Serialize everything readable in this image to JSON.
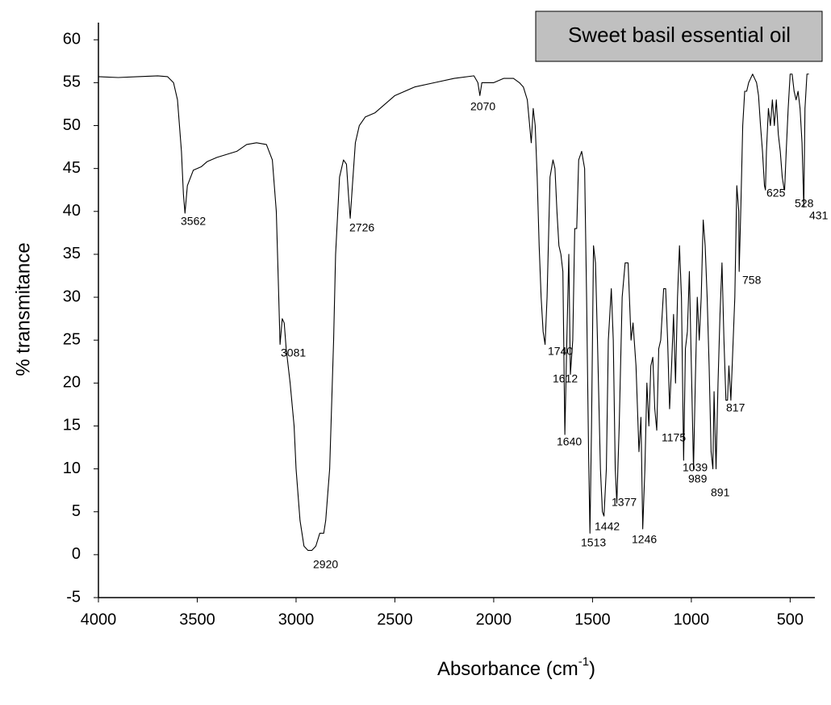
{
  "chart_data": {
    "type": "line",
    "title": "Sweet basil essential oil",
    "x_label": {
      "text": "Absorbance (cm",
      "sup": "-1",
      "tail": ")"
    },
    "y_label": "% transmitance",
    "xlim": [
      4000,
      375
    ],
    "xticks": [
      4000,
      3500,
      3000,
      2500,
      2000,
      1500,
      1000,
      500
    ],
    "ylim": [
      -5,
      62
    ],
    "yticks": [
      -5,
      0,
      5,
      10,
      15,
      20,
      25,
      30,
      35,
      40,
      45,
      50,
      55,
      60
    ],
    "grid": false,
    "series": [
      {
        "name": "Sweet basil essential oil",
        "color": "#000000",
        "x": [
          4000,
          3900,
          3800,
          3700,
          3650,
          3620,
          3600,
          3580,
          3570,
          3562,
          3550,
          3520,
          3480,
          3450,
          3400,
          3300,
          3250,
          3200,
          3150,
          3120,
          3100,
          3090,
          3081,
          3070,
          3060,
          3050,
          3030,
          3010,
          3000,
          2980,
          2960,
          2940,
          2920,
          2900,
          2880,
          2860,
          2850,
          2830,
          2810,
          2800,
          2780,
          2760,
          2745,
          2735,
          2726,
          2715,
          2700,
          2680,
          2650,
          2600,
          2550,
          2500,
          2400,
          2300,
          2200,
          2100,
          2080,
          2070,
          2060,
          2000,
          1950,
          1900,
          1870,
          1850,
          1830,
          1810,
          1800,
          1790,
          1780,
          1770,
          1760,
          1750,
          1740,
          1730,
          1715,
          1700,
          1690,
          1680,
          1670,
          1660,
          1650,
          1640,
          1630,
          1620,
          1612,
          1600,
          1590,
          1580,
          1570,
          1555,
          1540,
          1530,
          1520,
          1513,
          1505,
          1495,
          1485,
          1475,
          1460,
          1450,
          1442,
          1430,
          1420,
          1405,
          1395,
          1385,
          1377,
          1365,
          1350,
          1335,
          1320,
          1305,
          1295,
          1280,
          1265,
          1255,
          1246,
          1235,
          1225,
          1215,
          1205,
          1195,
          1185,
          1175,
          1165,
          1155,
          1140,
          1130,
          1120,
          1110,
          1100,
          1090,
          1080,
          1070,
          1060,
          1050,
          1039,
          1030,
          1020,
          1010,
          1000,
          989,
          980,
          970,
          960,
          950,
          940,
          930,
          920,
          910,
          900,
          891,
          885,
          875,
          865,
          855,
          845,
          835,
          825,
          817,
          810,
          800,
          790,
          780,
          770,
          760,
          758,
          750,
          740,
          730,
          720,
          710,
          700,
          690,
          680,
          670,
          660,
          650,
          640,
          630,
          625,
          620,
          610,
          600,
          590,
          580,
          570,
          560,
          550,
          540,
          530,
          528,
          520,
          510,
          500,
          490,
          480,
          470,
          460,
          450,
          440,
          431,
          425,
          415,
          405
        ],
        "values": [
          55.7,
          55.6,
          55.7,
          55.8,
          55.7,
          55,
          53,
          47,
          42,
          39.8,
          43,
          44.8,
          45.2,
          45.8,
          46.3,
          47,
          47.8,
          48,
          47.8,
          46,
          40,
          32,
          24.5,
          27.5,
          27,
          24,
          20,
          15,
          10,
          4,
          1,
          0.5,
          0.5,
          1,
          2.5,
          2.5,
          4,
          10,
          25,
          35,
          44,
          46,
          45.5,
          42,
          39.2,
          43,
          48,
          50,
          51,
          51.5,
          52.5,
          53.5,
          54.5,
          55,
          55.5,
          55.8,
          55,
          53.5,
          55,
          55,
          55.5,
          55.5,
          55,
          54.5,
          53,
          48,
          52,
          50,
          44,
          36,
          30,
          26,
          24.5,
          30,
          44,
          46,
          45,
          40,
          36,
          35,
          33,
          14,
          25,
          35,
          21,
          25,
          38,
          38,
          46,
          47,
          45,
          30,
          12,
          2.5,
          15,
          36,
          34,
          25,
          10,
          5,
          4.5,
          10,
          25,
          31,
          25,
          10,
          6,
          15,
          30,
          34,
          34,
          25,
          27,
          22,
          12,
          16,
          3,
          10,
          20,
          15,
          22,
          23,
          17,
          14.5,
          24,
          25,
          31,
          31,
          25,
          17,
          22,
          28,
          20,
          30,
          36,
          30,
          11,
          24,
          26,
          33,
          22,
          10,
          20,
          30,
          25,
          30,
          39,
          36,
          30,
          22,
          12,
          10,
          19,
          10,
          20,
          28,
          34,
          25,
          18,
          18,
          22,
          18,
          24,
          30,
          43,
          40,
          33,
          40,
          50,
          54,
          54,
          55,
          55.5,
          56,
          55.5,
          55,
          53.5,
          50,
          47,
          43,
          42.5,
          47,
          52,
          50,
          53,
          50,
          53,
          49,
          47,
          44,
          42.5,
          42.5,
          47,
          52,
          56,
          56,
          54,
          53,
          54,
          52,
          48,
          40.5,
          52,
          56,
          56
        ]
      }
    ],
    "peaks": [
      {
        "x": 3562,
        "y": 39.8
      },
      {
        "x": 3081,
        "y": 24.5
      },
      {
        "x": 2920,
        "y": 0.5
      },
      {
        "x": 2726,
        "y": 39.2
      },
      {
        "x": 2070,
        "y": 53.5
      },
      {
        "x": 1740,
        "y": 24.5
      },
      {
        "x": 1640,
        "y": 14
      },
      {
        "x": 1612,
        "y": 21
      },
      {
        "x": 1513,
        "y": 2.5
      },
      {
        "x": 1442,
        "y": 4.5
      },
      {
        "x": 1377,
        "y": 6
      },
      {
        "x": 1246,
        "y": 3
      },
      {
        "x": 1175,
        "y": 14.5
      },
      {
        "x": 1039,
        "y": 11
      },
      {
        "x": 989,
        "y": 10
      },
      {
        "x": 891,
        "y": 10
      },
      {
        "x": 817,
        "y": 18
      },
      {
        "x": 758,
        "y": 33
      },
      {
        "x": 625,
        "y": 42.5
      },
      {
        "x": 528,
        "y": 42.5
      },
      {
        "x": 431,
        "y": 40.5
      }
    ]
  }
}
